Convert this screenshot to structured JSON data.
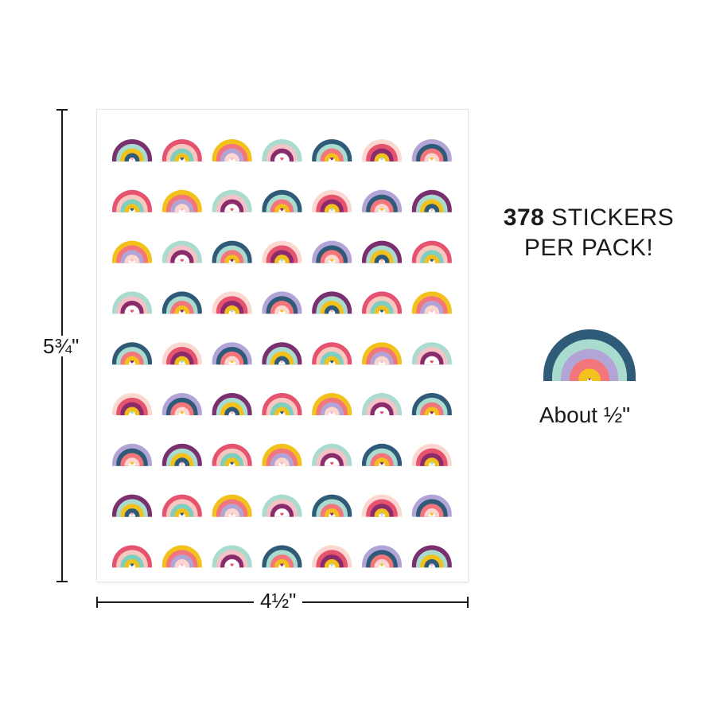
{
  "sheet": {
    "columns": 7,
    "rows": 9,
    "variants": [
      {
        "colors": [
          "#7a2f6e",
          "#a9dccf",
          "#f3c11b",
          "#2f5a78"
        ],
        "heart": "#f2b6c8"
      },
      {
        "colors": [
          "#e5536f",
          "#f8c8c0",
          "#7fcfc0",
          "#f3c11b"
        ],
        "heart": "#2f5a78"
      },
      {
        "colors": [
          "#f3c11b",
          "#f2767c",
          "#b3a4d8",
          "#fbd7cf"
        ],
        "heart": "#f5b9c9"
      },
      {
        "colors": [
          "#a9dccf",
          "#f3c3c7",
          "#8a2c6b",
          "#ffffff"
        ],
        "heart": "#e5536f"
      },
      {
        "colors": [
          "#2f5a78",
          "#a9dccf",
          "#f2767c",
          "#f3c11b"
        ],
        "heart": "#8a2c6b"
      },
      {
        "colors": [
          "#fbd7cf",
          "#e5536f",
          "#8a2c6b",
          "#f3c11b"
        ],
        "heart": "#a9dccf"
      },
      {
        "colors": [
          "#b3a4d8",
          "#2f5a78",
          "#f2767c",
          "#fbd7cf"
        ],
        "heart": "#f3c11b"
      }
    ]
  },
  "dimensions": {
    "height_label": "5¾\"",
    "width_label": "4½\""
  },
  "headline": {
    "count": "378",
    "line1_rest": " STICKERS",
    "line2": "PER PACK!"
  },
  "sample": {
    "colors": [
      "#2f5a78",
      "#a9dccf",
      "#b3a4d8",
      "#f2767c",
      "#f3c11b"
    ],
    "heart": "#8a2c6b",
    "caption": "About ½\""
  }
}
